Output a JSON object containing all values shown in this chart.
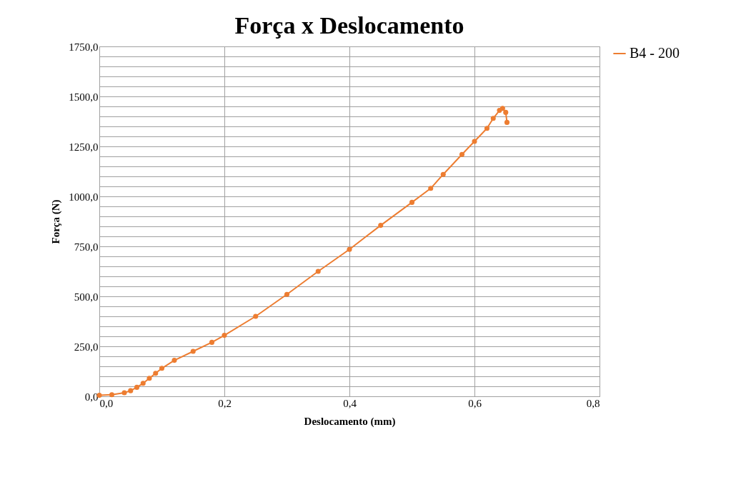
{
  "chart_data": {
    "type": "line",
    "title": "Força x Deslocamento",
    "xlabel": "Deslocamento (mm)",
    "ylabel": "Força (N)",
    "x": [
      0,
      0.02,
      0.04,
      0.05,
      0.06,
      0.07,
      0.08,
      0.09,
      0.1,
      0.12,
      0.15,
      0.18,
      0.2,
      0.25,
      0.3,
      0.35,
      0.4,
      0.45,
      0.5,
      0.53,
      0.55,
      0.58,
      0.6,
      0.62,
      0.63,
      0.64,
      0.645,
      0.65,
      0.652
    ],
    "series": [
      {
        "name": "B4 - 200",
        "color": "#ed7d31",
        "values": [
          5,
          8,
          18,
          28,
          45,
          65,
          90,
          115,
          140,
          180,
          225,
          270,
          305,
          400,
          510,
          625,
          735,
          855,
          970,
          1040,
          1110,
          1210,
          1275,
          1340,
          1390,
          1430,
          1440,
          1420,
          1370
        ]
      }
    ],
    "xlim": [
      0,
      0.8
    ],
    "xticks": [
      {
        "value": 0,
        "label": "0,0"
      },
      {
        "value": 0.2,
        "label": "0,2"
      },
      {
        "value": 0.4,
        "label": "0,4"
      },
      {
        "value": 0.6,
        "label": "0,6"
      },
      {
        "value": 0.8,
        "label": "0,8"
      }
    ],
    "ylim": [
      0,
      1750
    ],
    "yticks": [
      {
        "value": 0,
        "label": "0,0"
      },
      {
        "value": 50,
        "label": null
      },
      {
        "value": 100,
        "label": null
      },
      {
        "value": 150,
        "label": null
      },
      {
        "value": 200,
        "label": null
      },
      {
        "value": 250,
        "label": "250,0"
      },
      {
        "value": 300,
        "label": null
      },
      {
        "value": 350,
        "label": null
      },
      {
        "value": 400,
        "label": null
      },
      {
        "value": 450,
        "label": null
      },
      {
        "value": 500,
        "label": "500,0"
      },
      {
        "value": 550,
        "label": null
      },
      {
        "value": 600,
        "label": null
      },
      {
        "value": 650,
        "label": null
      },
      {
        "value": 700,
        "label": null
      },
      {
        "value": 750,
        "label": "750,0"
      },
      {
        "value": 800,
        "label": null
      },
      {
        "value": 850,
        "label": null
      },
      {
        "value": 900,
        "label": null
      },
      {
        "value": 950,
        "label": null
      },
      {
        "value": 1000,
        "label": "1000,0"
      },
      {
        "value": 1050,
        "label": null
      },
      {
        "value": 1100,
        "label": null
      },
      {
        "value": 1150,
        "label": null
      },
      {
        "value": 1200,
        "label": null
      },
      {
        "value": 1250,
        "label": "1250,0"
      },
      {
        "value": 1300,
        "label": null
      },
      {
        "value": 1350,
        "label": null
      },
      {
        "value": 1400,
        "label": null
      },
      {
        "value": 1450,
        "label": null
      },
      {
        "value": 1500,
        "label": "1500,0"
      },
      {
        "value": 1550,
        "label": null
      },
      {
        "value": 1600,
        "label": null
      },
      {
        "value": 1650,
        "label": null
      },
      {
        "value": 1700,
        "label": null
      },
      {
        "value": 1750,
        "label": "1750,0"
      }
    ],
    "grid": true,
    "legend": "right",
    "marker": "circle",
    "line_style": "solid"
  }
}
